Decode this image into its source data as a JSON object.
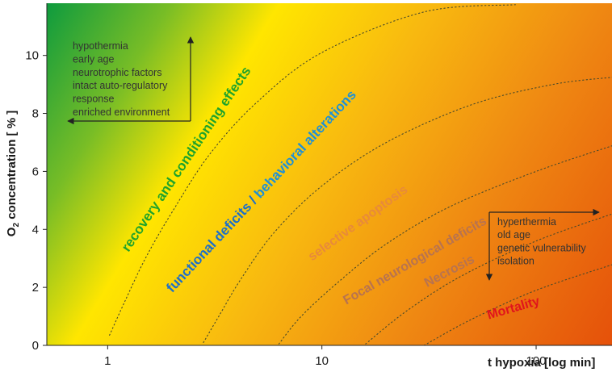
{
  "chart_data": {
    "type": "area",
    "x_scale": "log",
    "xlim": [
      0.52,
      230
    ],
    "ylim": [
      0,
      11.8
    ],
    "xlabel": "t hypoxia [log min]",
    "ylabel_main": "O",
    "ylabel_sub": "2",
    "ylabel_rest": " concentration [ % ]",
    "x_ticks": [
      {
        "value": 1,
        "label": "1"
      },
      {
        "value": 10,
        "label": "10"
      },
      {
        "value": 100,
        "label": "100"
      }
    ],
    "y_ticks": [
      {
        "value": 0,
        "label": "0"
      },
      {
        "value": 2,
        "label": "2"
      },
      {
        "value": 4,
        "label": "4"
      },
      {
        "value": 6,
        "label": "6"
      },
      {
        "value": 8,
        "label": "8"
      },
      {
        "value": 10,
        "label": "10"
      }
    ],
    "boundaries": [
      {
        "points": [
          [
            1.02,
            0.35
          ],
          [
            1.2,
            1.5
          ],
          [
            1.5,
            3.0
          ],
          [
            2.0,
            4.6
          ],
          [
            3.0,
            6.6
          ],
          [
            5.0,
            8.4
          ],
          [
            10.0,
            10.1
          ],
          [
            30.0,
            11.5
          ],
          [
            80.0,
            11.75
          ]
        ]
      },
      {
        "points": [
          [
            2.8,
            0.1
          ],
          [
            3.3,
            1.0
          ],
          [
            4.2,
            2.3
          ],
          [
            6.0,
            3.9
          ],
          [
            10.0,
            5.5
          ],
          [
            20.0,
            7.0
          ],
          [
            50.0,
            8.3
          ],
          [
            120.0,
            9.0
          ],
          [
            230.0,
            9.25
          ]
        ]
      },
      {
        "points": [
          [
            6.3,
            0.05
          ],
          [
            8.0,
            1.0
          ],
          [
            12.0,
            2.2
          ],
          [
            20.0,
            3.5
          ],
          [
            40.0,
            4.8
          ],
          [
            100.0,
            6.0
          ],
          [
            230.0,
            6.9
          ]
        ]
      },
      {
        "points": [
          [
            16.0,
            0.05
          ],
          [
            25.0,
            1.2
          ],
          [
            45.0,
            2.4
          ],
          [
            100.0,
            3.6
          ],
          [
            230.0,
            4.55
          ]
        ]
      },
      {
        "points": [
          [
            30.0,
            0.0
          ],
          [
            50.0,
            0.9
          ],
          [
            100.0,
            1.9
          ],
          [
            230.0,
            2.8
          ]
        ]
      }
    ],
    "zones": [
      {
        "label": "recovery and conditioning effects",
        "color": "#1fa32b",
        "x": 1.25,
        "y": 3.2,
        "angle": -56,
        "size": 17
      },
      {
        "label_a": "functional deficits / ",
        "label_b": "behavioral alterations",
        "color_a": "#1d6fc9",
        "color_b": "#1e90d6",
        "x": 2.0,
        "y": 1.8,
        "angle": -47,
        "size": 17
      },
      {
        "label": "selective apoptosis",
        "color": "#e88a3a",
        "x": 9.0,
        "y": 2.9,
        "angle": -36,
        "size": 16
      },
      {
        "label": "Focal neurological deficits",
        "color": "#b8734f",
        "x": 13.0,
        "y": 1.4,
        "angle": -30,
        "size": 16
      },
      {
        "label": "Necrosis",
        "color": "#b8734f",
        "x": 31.0,
        "y": 2.0,
        "angle": -28,
        "size": 16
      },
      {
        "label": "Mortality",
        "color": "#e0141c",
        "x": 60.0,
        "y": 0.9,
        "angle": -16,
        "size": 16
      }
    ],
    "protective_factors": [
      "hypothermia",
      "early age",
      "neurotrophic factors",
      "intact auto-regulatory",
      "response",
      "enriched environment"
    ],
    "risk_factors": [
      "hyperthermia",
      "old age",
      "genetic vulnerability",
      "isolation"
    ]
  }
}
